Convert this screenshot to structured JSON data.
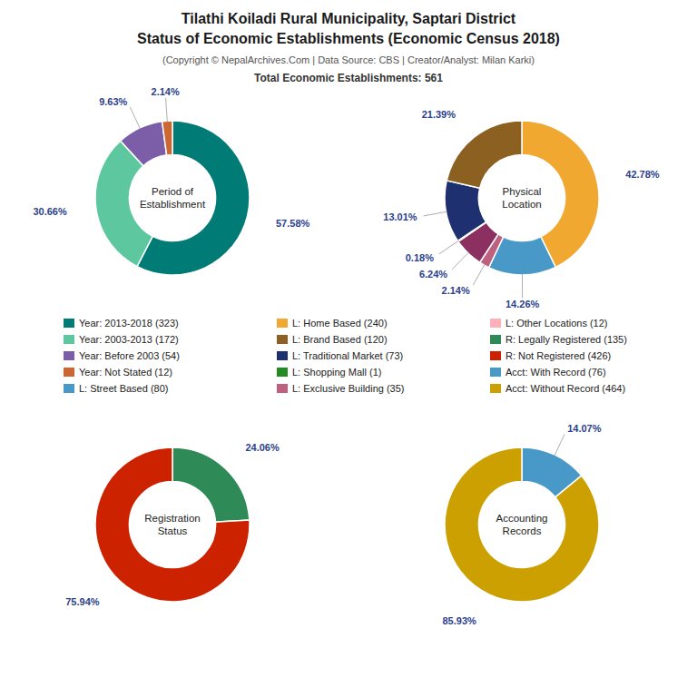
{
  "title": "Tilathi Koiladi Rural Municipality, Saptari District\nStatus of Economic Establishments (Economic Census 2018)",
  "subtitle": "(Copyright © NepalArchives.Com | Data Source: CBS | Creator/Analyst: Milan Karki)",
  "annotations": [
    "Total Economic Establishments: 561"
  ],
  "legend_items": [
    {
      "name": "Year: 2013-2018 (323)",
      "color": "#007B75"
    },
    {
      "name": "Year: 2003-2013 (172)",
      "color": "#5DC8A0"
    },
    {
      "name": "Year: Before 2003 (54)",
      "color": "#7B5EA7"
    },
    {
      "name": "Year: Not Stated (12)",
      "color": "#CC6633"
    },
    {
      "name": "L: Street Based (80)",
      "color": "#4899C8"
    },
    {
      "name": "L: Home Based (240)",
      "color": "#F0A830"
    },
    {
      "name": "L: Brand Based (120)",
      "color": "#8B6020"
    },
    {
      "name": "L: Traditional Market (73)",
      "color": "#1F3070"
    },
    {
      "name": "L: Shopping Mall (1)",
      "color": "#228B22"
    },
    {
      "name": "L: Exclusive Building (35)",
      "color": "#C06080"
    },
    {
      "name": "L: Other Locations (12)",
      "color": "#FFB0B8"
    },
    {
      "name": "R: Legally Registered (135)",
      "color": "#2E8B57"
    },
    {
      "name": "R: Not Registered (426)",
      "color": "#CC2200"
    },
    {
      "name": "Acct: With Record (76)",
      "color": "#4899C8"
    },
    {
      "name": "Acct: Without Record (464)",
      "color": "#CCA000"
    }
  ],
  "chart_data": [
    {
      "type": "pie",
      "title": "Period of\nEstablishment",
      "values": [
        57.58,
        30.66,
        9.63,
        2.14
      ],
      "value_labels": [
        "57.58%",
        "30.66%",
        "9.63%",
        "2.14%"
      ],
      "colors": [
        "#007B75",
        "#5DC8A0",
        "#7B5EA7",
        "#CC6633"
      ],
      "data_labels": true
    },
    {
      "type": "pie",
      "title": "Physical\nLocation",
      "values": [
        42.78,
        14.26,
        2.14,
        6.24,
        0.18,
        13.01,
        21.39
      ],
      "value_labels": [
        "42.78%",
        "14.26%",
        "2.14%",
        "6.24%",
        "0.18%",
        "13.01%",
        "21.39%"
      ],
      "colors": [
        "#F0A830",
        "#4899C8",
        "#C06080",
        "#8B3060",
        "#228B22",
        "#1F3070",
        "#8B6020"
      ],
      "data_labels": true
    },
    {
      "type": "pie",
      "title": "Registration\nStatus",
      "values": [
        24.06,
        75.94
      ],
      "value_labels": [
        "24.06%",
        "75.94%"
      ],
      "colors": [
        "#2E8B57",
        "#CC2200"
      ],
      "data_labels": true
    },
    {
      "type": "pie",
      "title": "Accounting\nRecords",
      "values": [
        14.07,
        85.93
      ],
      "value_labels": [
        "14.07%",
        "85.93%"
      ],
      "colors": [
        "#4899C8",
        "#CCA000"
      ],
      "data_labels": true
    }
  ]
}
